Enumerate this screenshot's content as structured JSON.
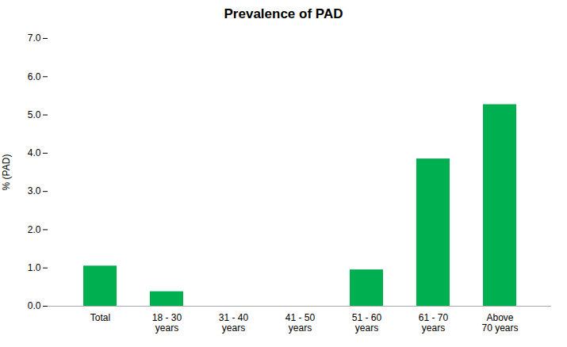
{
  "chart_data": {
    "type": "bar",
    "title": "Prevalence of PAD",
    "ylabel": "% (PAD)",
    "categories": [
      "Total",
      "18 - 30\nyears",
      "31 - 40\nyears",
      "41 - 50\nyears",
      "51 - 60\nyears",
      "61 - 70\nyears",
      "Above\n70 years"
    ],
    "values": [
      1.05,
      0.38,
      0.0,
      0.0,
      0.95,
      3.85,
      5.27
    ],
    "color": "#00b050",
    "ylim": [
      0,
      7.0
    ],
    "yticks": [
      {
        "value": 0.0,
        "label": "0.0"
      },
      {
        "value": 1.0,
        "label": "1.0"
      },
      {
        "value": 2.0,
        "label": "2.0"
      },
      {
        "value": 3.0,
        "label": "3.0"
      },
      {
        "value": 4.0,
        "label": "4.0"
      },
      {
        "value": 5.0,
        "label": "5.0"
      },
      {
        "value": 6.0,
        "label": "6.0"
      },
      {
        "value": 7.0,
        "label": "7.0"
      }
    ],
    "grid": false
  }
}
